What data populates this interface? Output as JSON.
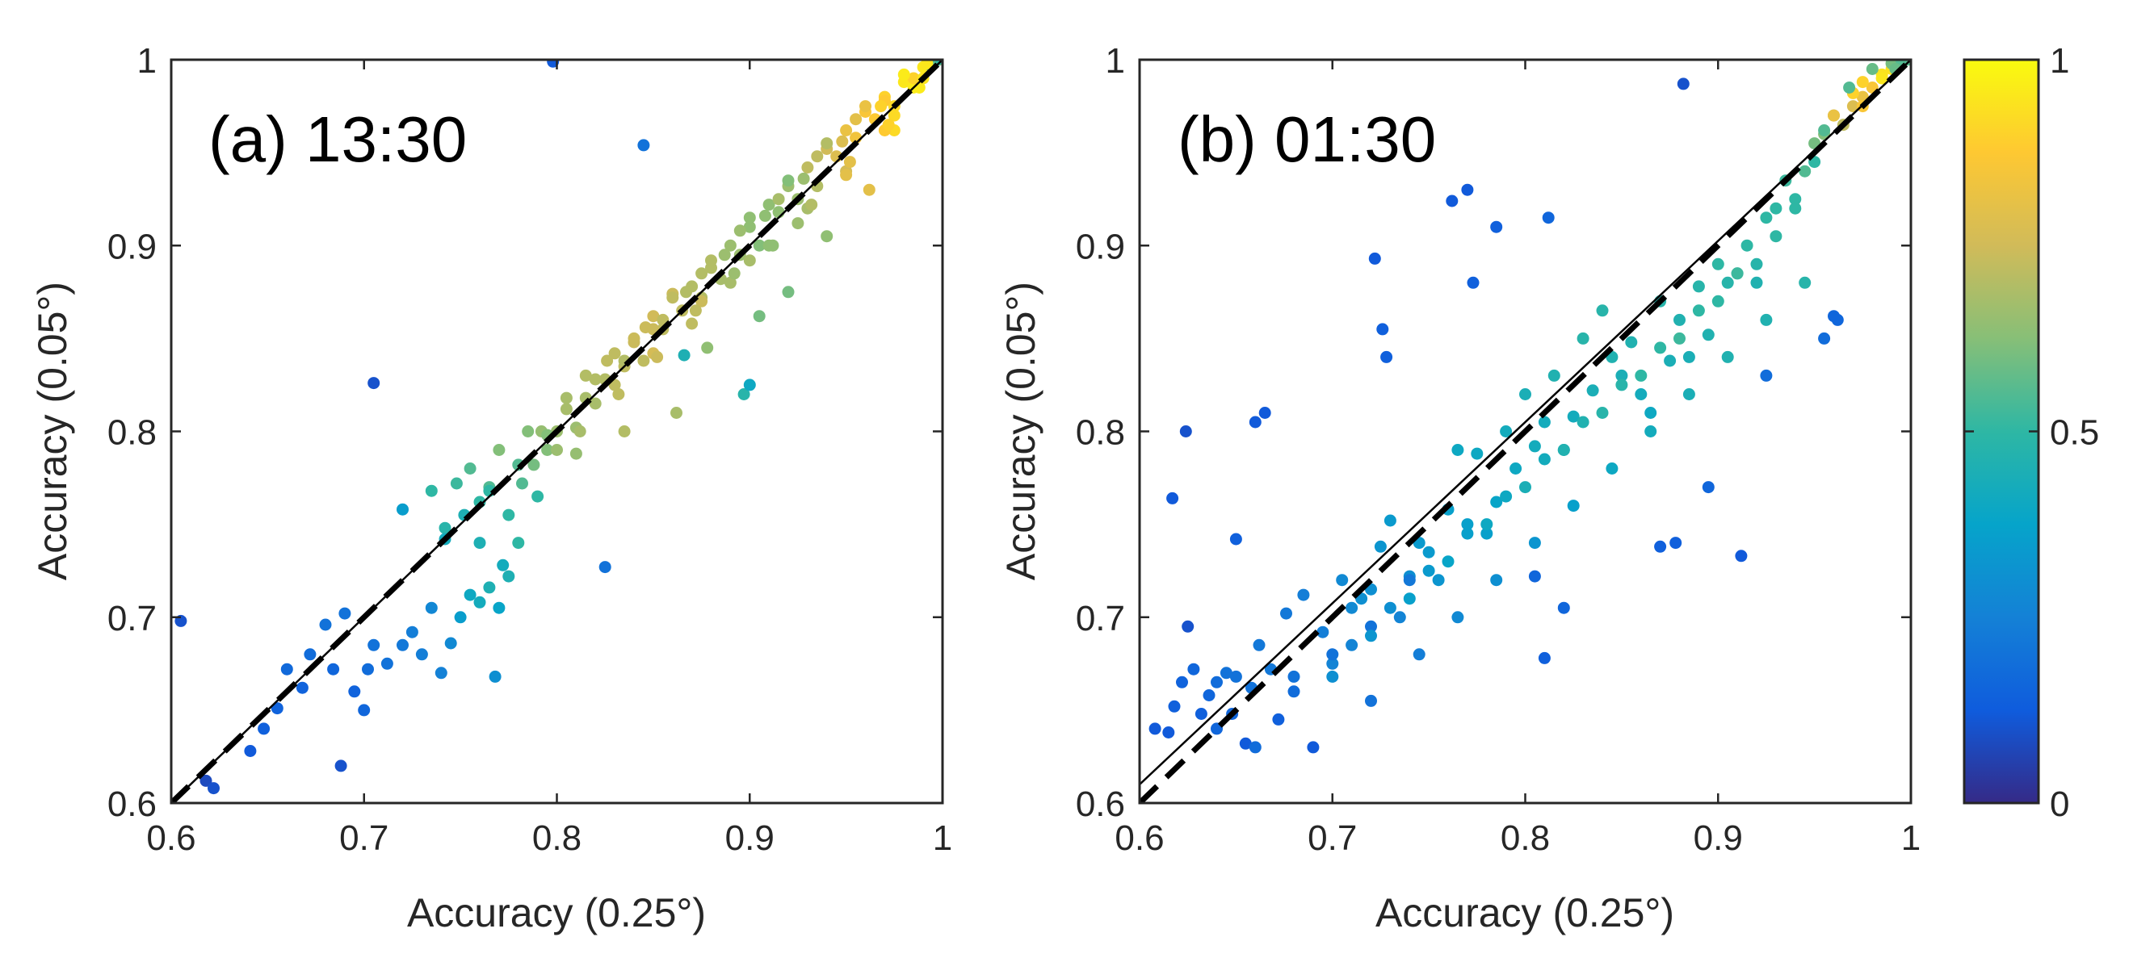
{
  "chart_data": [
    {
      "type": "scatter",
      "title": "(a) 13:30",
      "xlabel": "Accuracy (0.25°)",
      "ylabel": "Accuracy (0.05°)",
      "xlim": [
        0.6,
        1
      ],
      "ylim": [
        0.6,
        1
      ],
      "xticks": [
        "0.6",
        "0.7",
        "0.8",
        "0.9",
        "1"
      ],
      "yticks": [
        "0.6",
        "0.7",
        "0.8",
        "0.9",
        "1"
      ],
      "reference_lines": [
        {
          "name": "1:1 line",
          "style": "solid",
          "from": [
            0.6,
            0.6
          ],
          "to": [
            1,
            1
          ]
        },
        {
          "name": "fit line",
          "style": "dashed",
          "from": [
            0.6,
            0.6
          ],
          "to": [
            1,
            1.0
          ]
        }
      ],
      "points": {
        "x": [
          0.605,
          0.618,
          0.622,
          0.641,
          0.648,
          0.655,
          0.66,
          0.668,
          0.672,
          0.68,
          0.684,
          0.688,
          0.69,
          0.695,
          0.7,
          0.702,
          0.705,
          0.712,
          0.72,
          0.725,
          0.73,
          0.735,
          0.74,
          0.745,
          0.75,
          0.755,
          0.76,
          0.765,
          0.768,
          0.77,
          0.775,
          0.78,
          0.72,
          0.735,
          0.742,
          0.748,
          0.755,
          0.76,
          0.765,
          0.77,
          0.775,
          0.782,
          0.788,
          0.792,
          0.795,
          0.8,
          0.805,
          0.81,
          0.815,
          0.82,
          0.825,
          0.83,
          0.835,
          0.84,
          0.845,
          0.85,
          0.855,
          0.86,
          0.865,
          0.87,
          0.875,
          0.88,
          0.885,
          0.89,
          0.895,
          0.9,
          0.905,
          0.91,
          0.915,
          0.92,
          0.925,
          0.93,
          0.935,
          0.94,
          0.945,
          0.95,
          0.955,
          0.96,
          0.965,
          0.97,
          0.975,
          0.98,
          0.985,
          0.99,
          0.993,
          0.995,
          0.998,
          0.798,
          0.705,
          0.845,
          0.825,
          0.866,
          0.897,
          0.9,
          0.76,
          0.772,
          0.79,
          0.81,
          0.835,
          0.862,
          0.878,
          0.905,
          0.92,
          0.94,
          0.962,
          0.975,
          0.988,
          0.997,
          0.994,
          0.985,
          0.97,
          0.955,
          0.935,
          0.915,
          0.895,
          0.875,
          0.855,
          0.835,
          0.815,
          0.795,
          0.78,
          0.765,
          0.752,
          0.742,
          0.8,
          0.82,
          0.84,
          0.86,
          0.88,
          0.9,
          0.92,
          0.94,
          0.96,
          0.98,
          0.785,
          0.805,
          0.826,
          0.846,
          0.867,
          0.887,
          0.908,
          0.928,
          0.948,
          0.968,
          0.83,
          0.85,
          0.87,
          0.89,
          0.91,
          0.93,
          0.95,
          0.97,
          0.99,
          0.85,
          0.875,
          0.9,
          0.925,
          0.95,
          0.975,
          0.812,
          0.832,
          0.852,
          0.872,
          0.892,
          0.912,
          0.932,
          0.952,
          0.972,
          0.992
        ],
        "y": [
          0.698,
          0.612,
          0.608,
          0.628,
          0.64,
          0.651,
          0.672,
          0.662,
          0.68,
          0.696,
          0.672,
          0.62,
          0.702,
          0.66,
          0.65,
          0.672,
          0.685,
          0.675,
          0.685,
          0.692,
          0.68,
          0.705,
          0.67,
          0.686,
          0.7,
          0.712,
          0.708,
          0.716,
          0.668,
          0.705,
          0.722,
          0.74,
          0.758,
          0.768,
          0.748,
          0.772,
          0.78,
          0.762,
          0.77,
          0.79,
          0.755,
          0.772,
          0.782,
          0.8,
          0.79,
          0.8,
          0.812,
          0.802,
          0.83,
          0.815,
          0.828,
          0.842,
          0.835,
          0.85,
          0.838,
          0.862,
          0.855,
          0.874,
          0.865,
          0.878,
          0.872,
          0.888,
          0.882,
          0.9,
          0.895,
          0.91,
          0.9,
          0.922,
          0.918,
          0.932,
          0.925,
          0.942,
          0.932,
          0.952,
          0.948,
          0.962,
          0.958,
          0.972,
          0.968,
          0.98,
          0.975,
          0.988,
          0.985,
          0.996,
          0.998,
          0.999,
          1.0,
          0.999,
          0.826,
          0.954,
          0.727,
          0.841,
          0.82,
          0.825,
          0.74,
          0.728,
          0.765,
          0.788,
          0.8,
          0.81,
          0.845,
          0.862,
          0.875,
          0.905,
          0.93,
          0.962,
          0.985,
          1.0,
          0.997,
          0.99,
          0.978,
          0.968,
          0.948,
          0.925,
          0.908,
          0.885,
          0.86,
          0.838,
          0.818,
          0.798,
          0.782,
          0.768,
          0.755,
          0.742,
          0.79,
          0.828,
          0.848,
          0.872,
          0.892,
          0.915,
          0.935,
          0.955,
          0.975,
          0.992,
          0.8,
          0.818,
          0.838,
          0.856,
          0.875,
          0.895,
          0.916,
          0.936,
          0.956,
          0.975,
          0.825,
          0.842,
          0.858,
          0.88,
          0.9,
          0.92,
          0.94,
          0.962,
          0.99,
          0.855,
          0.87,
          0.892,
          0.912,
          0.938,
          0.97,
          0.8,
          0.82,
          0.84,
          0.865,
          0.885,
          0.9,
          0.922,
          0.945,
          0.965,
          0.998
        ],
        "color_values": [
          0.1,
          0.08,
          0.1,
          0.12,
          0.14,
          0.15,
          0.17,
          0.15,
          0.18,
          0.2,
          0.16,
          0.1,
          0.2,
          0.15,
          0.16,
          0.18,
          0.2,
          0.2,
          0.22,
          0.24,
          0.24,
          0.27,
          0.25,
          0.28,
          0.35,
          0.4,
          0.42,
          0.45,
          0.3,
          0.38,
          0.45,
          0.5,
          0.35,
          0.5,
          0.48,
          0.52,
          0.55,
          0.5,
          0.55,
          0.62,
          0.5,
          0.55,
          0.6,
          0.65,
          0.62,
          0.66,
          0.68,
          0.66,
          0.7,
          0.68,
          0.7,
          0.72,
          0.72,
          0.74,
          0.72,
          0.75,
          0.72,
          0.74,
          0.72,
          0.7,
          0.7,
          0.7,
          0.68,
          0.66,
          0.66,
          0.64,
          0.62,
          0.64,
          0.64,
          0.66,
          0.66,
          0.72,
          0.7,
          0.75,
          0.78,
          0.82,
          0.84,
          0.86,
          0.88,
          0.9,
          0.92,
          0.95,
          0.96,
          0.95,
          0.5,
          0.55,
          0.6,
          0.12,
          0.1,
          0.2,
          0.2,
          0.45,
          0.48,
          0.4,
          0.45,
          0.42,
          0.5,
          0.65,
          0.7,
          0.68,
          0.64,
          0.6,
          0.6,
          0.64,
          0.8,
          0.92,
          0.96,
          0.5,
          0.55,
          0.9,
          0.88,
          0.8,
          0.72,
          0.68,
          0.66,
          0.7,
          0.72,
          0.7,
          0.68,
          0.62,
          0.55,
          0.5,
          0.45,
          0.42,
          0.66,
          0.7,
          0.74,
          0.72,
          0.7,
          0.64,
          0.62,
          0.7,
          0.82,
          0.96,
          0.62,
          0.68,
          0.72,
          0.74,
          0.7,
          0.66,
          0.64,
          0.66,
          0.78,
          0.9,
          0.72,
          0.76,
          0.72,
          0.68,
          0.64,
          0.68,
          0.76,
          0.88,
          0.94,
          0.74,
          0.74,
          0.68,
          0.66,
          0.8,
          0.92,
          0.68,
          0.72,
          0.74,
          0.72,
          0.66,
          0.64,
          0.7,
          0.8,
          0.9,
          0.95
        ]
      }
    },
    {
      "type": "scatter",
      "title": "(b) 01:30",
      "xlabel": "Accuracy (0.25°)",
      "ylabel": "Accuracy (0.05°)",
      "xlim": [
        0.6,
        1
      ],
      "ylim": [
        0.6,
        1
      ],
      "xticks": [
        "0.6",
        "0.7",
        "0.8",
        "0.9",
        "1"
      ],
      "yticks": [
        "0.6",
        "0.7",
        "0.8",
        "0.9",
        "1"
      ],
      "reference_lines": [
        {
          "name": "1:1 line",
          "style": "solid",
          "from": [
            0.6,
            0.61
          ],
          "to": [
            1,
            1
          ]
        },
        {
          "name": "fit line",
          "style": "dashed",
          "from": [
            0.6,
            0.6
          ],
          "to": [
            1,
            1.0
          ]
        }
      ],
      "points": {
        "x": [
          0.608,
          0.615,
          0.618,
          0.622,
          0.625,
          0.628,
          0.632,
          0.636,
          0.64,
          0.645,
          0.648,
          0.65,
          0.655,
          0.658,
          0.662,
          0.668,
          0.672,
          0.676,
          0.68,
          0.685,
          0.69,
          0.695,
          0.7,
          0.705,
          0.71,
          0.715,
          0.72,
          0.725,
          0.73,
          0.735,
          0.74,
          0.745,
          0.75,
          0.755,
          0.76,
          0.765,
          0.77,
          0.775,
          0.78,
          0.785,
          0.79,
          0.795,
          0.8,
          0.805,
          0.81,
          0.815,
          0.82,
          0.825,
          0.83,
          0.835,
          0.84,
          0.845,
          0.85,
          0.855,
          0.86,
          0.865,
          0.87,
          0.875,
          0.88,
          0.885,
          0.89,
          0.895,
          0.9,
          0.905,
          0.91,
          0.915,
          0.92,
          0.925,
          0.93,
          0.935,
          0.94,
          0.945,
          0.95,
          0.955,
          0.96,
          0.965,
          0.97,
          0.975,
          0.98,
          0.985,
          0.99,
          0.995,
          0.998,
          1.0,
          0.624,
          0.617,
          0.66,
          0.665,
          0.65,
          0.722,
          0.726,
          0.728,
          0.762,
          0.77,
          0.773,
          0.785,
          0.812,
          0.882,
          0.912,
          0.96,
          0.962,
          0.925,
          0.955,
          0.87,
          0.878,
          0.895,
          0.805,
          0.81,
          0.82,
          0.74,
          0.72,
          0.7,
          0.68,
          0.66,
          0.64,
          0.7,
          0.72,
          0.74,
          0.76,
          0.78,
          0.8,
          0.82,
          0.84,
          0.86,
          0.88,
          0.9,
          0.92,
          0.94,
          0.71,
          0.73,
          0.75,
          0.77,
          0.79,
          0.81,
          0.83,
          0.85,
          0.87,
          0.89,
          0.91,
          0.93,
          0.72,
          0.745,
          0.765,
          0.785,
          0.805,
          0.825,
          0.845,
          0.865,
          0.885,
          0.905,
          0.925,
          0.945,
          0.96,
          0.975,
          0.985,
          0.99,
          0.995,
          0.97,
          0.98,
          0.95,
          0.955,
          0.975,
          0.985,
          0.992,
          0.968
        ],
        "y": [
          0.64,
          0.638,
          0.652,
          0.665,
          0.695,
          0.672,
          0.648,
          0.658,
          0.665,
          0.67,
          0.648,
          0.668,
          0.632,
          0.662,
          0.685,
          0.672,
          0.645,
          0.702,
          0.668,
          0.712,
          0.63,
          0.692,
          0.675,
          0.72,
          0.705,
          0.71,
          0.715,
          0.738,
          0.752,
          0.7,
          0.722,
          0.74,
          0.735,
          0.72,
          0.758,
          0.79,
          0.75,
          0.788,
          0.745,
          0.762,
          0.8,
          0.78,
          0.82,
          0.792,
          0.805,
          0.83,
          0.79,
          0.808,
          0.85,
          0.822,
          0.865,
          0.84,
          0.83,
          0.848,
          0.82,
          0.81,
          0.87,
          0.838,
          0.86,
          0.84,
          0.878,
          0.852,
          0.89,
          0.88,
          0.885,
          0.9,
          0.88,
          0.915,
          0.92,
          0.935,
          0.925,
          0.94,
          0.955,
          0.96,
          0.97,
          0.965,
          0.975,
          0.98,
          0.985,
          0.99,
          0.995,
          0.998,
          1.0,
          1.0,
          0.8,
          0.764,
          0.805,
          0.81,
          0.742,
          0.893,
          0.855,
          0.84,
          0.924,
          0.93,
          0.88,
          0.91,
          0.915,
          0.987,
          0.733,
          0.862,
          0.86,
          0.83,
          0.85,
          0.738,
          0.74,
          0.77,
          0.722,
          0.678,
          0.705,
          0.72,
          0.695,
          0.68,
          0.66,
          0.63,
          0.64,
          0.668,
          0.69,
          0.71,
          0.73,
          0.75,
          0.77,
          0.79,
          0.81,
          0.83,
          0.85,
          0.87,
          0.89,
          0.92,
          0.685,
          0.705,
          0.725,
          0.745,
          0.765,
          0.785,
          0.805,
          0.825,
          0.845,
          0.865,
          0.885,
          0.905,
          0.655,
          0.68,
          0.7,
          0.72,
          0.74,
          0.76,
          0.78,
          0.8,
          0.82,
          0.84,
          0.86,
          0.88,
          0.97,
          0.988,
          0.992,
          0.998,
          1.0,
          0.982,
          0.995,
          0.945,
          0.962,
          0.975,
          0.99,
          0.995,
          0.985
        ],
        "color_values": [
          0.12,
          0.12,
          0.14,
          0.15,
          0.1,
          0.16,
          0.14,
          0.16,
          0.18,
          0.2,
          0.16,
          0.2,
          0.12,
          0.2,
          0.22,
          0.22,
          0.14,
          0.22,
          0.2,
          0.24,
          0.12,
          0.24,
          0.26,
          0.28,
          0.28,
          0.3,
          0.3,
          0.32,
          0.34,
          0.26,
          0.3,
          0.34,
          0.34,
          0.32,
          0.36,
          0.4,
          0.36,
          0.4,
          0.36,
          0.38,
          0.42,
          0.4,
          0.44,
          0.42,
          0.42,
          0.46,
          0.4,
          0.42,
          0.48,
          0.44,
          0.48,
          0.46,
          0.44,
          0.46,
          0.42,
          0.4,
          0.48,
          0.44,
          0.46,
          0.44,
          0.48,
          0.46,
          0.5,
          0.48,
          0.48,
          0.5,
          0.46,
          0.5,
          0.5,
          0.52,
          0.5,
          0.55,
          0.6,
          0.62,
          0.7,
          0.72,
          0.78,
          0.82,
          0.86,
          0.9,
          0.94,
          0.58,
          0.56,
          0.56,
          0.1,
          0.12,
          0.12,
          0.12,
          0.14,
          0.12,
          0.14,
          0.14,
          0.12,
          0.12,
          0.14,
          0.14,
          0.16,
          0.1,
          0.12,
          0.16,
          0.16,
          0.18,
          0.18,
          0.14,
          0.14,
          0.16,
          0.16,
          0.14,
          0.16,
          0.22,
          0.2,
          0.2,
          0.18,
          0.18,
          0.16,
          0.3,
          0.32,
          0.36,
          0.38,
          0.4,
          0.44,
          0.46,
          0.48,
          0.5,
          0.52,
          0.5,
          0.48,
          0.5,
          0.26,
          0.3,
          0.34,
          0.36,
          0.4,
          0.42,
          0.46,
          0.48,
          0.5,
          0.5,
          0.52,
          0.5,
          0.2,
          0.24,
          0.28,
          0.3,
          0.32,
          0.36,
          0.4,
          0.42,
          0.44,
          0.46,
          0.46,
          0.48,
          0.82,
          0.9,
          0.94,
          0.6,
          0.55,
          0.9,
          0.58,
          0.5,
          0.55,
          0.86,
          0.95,
          0.58,
          0.55
        ]
      }
    }
  ],
  "colorbar": {
    "ticks": [
      "0",
      "0.5",
      "1"
    ],
    "range": [
      0,
      1
    ],
    "colormap": "parula",
    "stops": [
      "#352a87",
      "#0f5cdd",
      "#1481d6",
      "#06a4ca",
      "#2eb7a4",
      "#87bf77",
      "#d1bb59",
      "#fec832",
      "#f9fb0e"
    ]
  }
}
